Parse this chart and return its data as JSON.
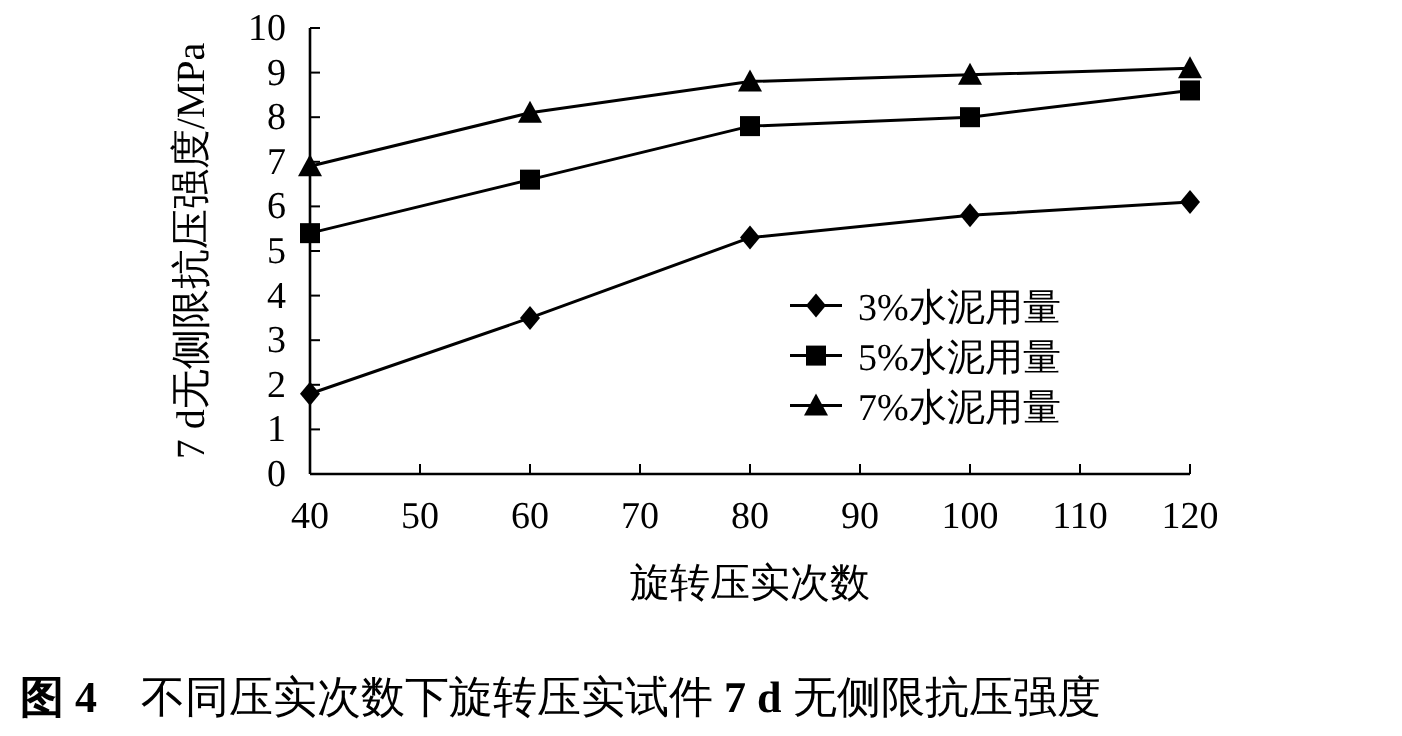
{
  "chart_data": {
    "type": "line",
    "ylabel": "7 d无侧限抗压强度/MPa",
    "xlabel": "旋转压实次数",
    "annotations": [
      "**图 4**　不同压实次数下旋转压实试件 **7 d** 无侧限抗压强度"
    ],
    "x": [
      40,
      60,
      80,
      100,
      120
    ],
    "xlim": [
      40,
      120
    ],
    "xticks": [
      40,
      50,
      60,
      70,
      80,
      90,
      100,
      110,
      120
    ],
    "ylim": [
      0,
      10
    ],
    "yticks": [
      0,
      1,
      2,
      3,
      4,
      5,
      6,
      7,
      8,
      9,
      10
    ],
    "grid": false,
    "legend": "bottom right",
    "line_style": "solid",
    "series": [
      {
        "name": "3%水泥用量",
        "color": "#000000",
        "marker": "diamond",
        "values": [
          1.8,
          3.5,
          5.3,
          5.8,
          6.1
        ]
      },
      {
        "name": "5%水泥用量",
        "color": "#000000",
        "marker": "square",
        "values": [
          5.4,
          6.6,
          7.8,
          8.0,
          8.6
        ]
      },
      {
        "name": "7%水泥用量",
        "color": "#000000",
        "marker": "triangle",
        "values": [
          6.9,
          8.1,
          8.8,
          8.95,
          9.1
        ]
      }
    ]
  }
}
